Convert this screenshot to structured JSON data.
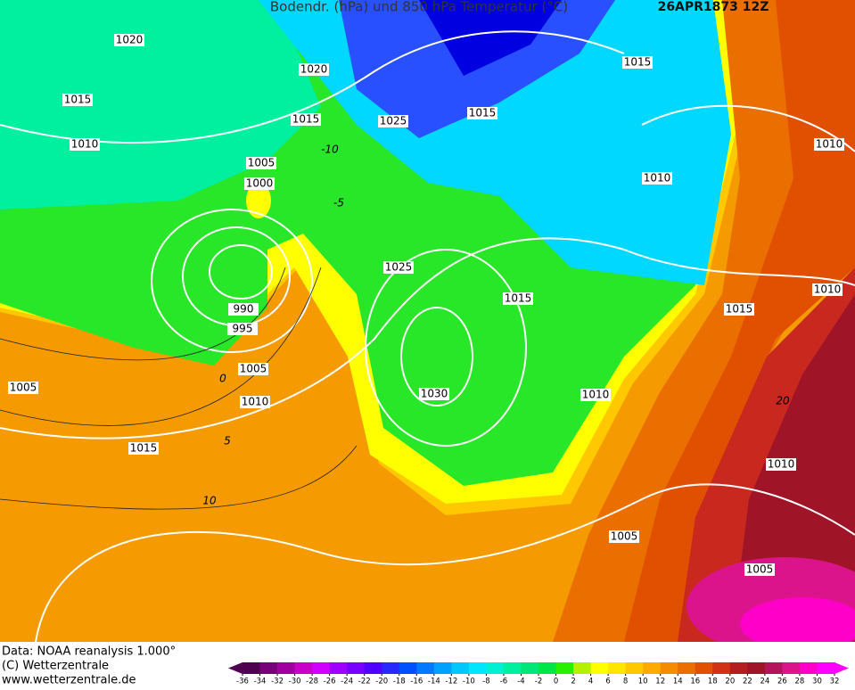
{
  "header": {
    "title": "Bodendr. (hPa) und 850 hPa Temperatur (°C)",
    "date": "26APR1873 12Z"
  },
  "isobar_labels": [
    1020,
    1015,
    1020,
    1015,
    1010,
    1005,
    1000,
    1025,
    1015,
    1015,
    1010,
    1010,
    990,
    995,
    1025,
    1015,
    1010,
    1015,
    1005,
    1010,
    1005,
    1030,
    1010,
    1015,
    1010,
    1005,
    1005
  ],
  "temperature_labels": [
    -10,
    -5,
    0,
    5,
    10,
    20
  ],
  "footer": {
    "data": "Data: NOAA reanalysis 1.000°",
    "copyright": "(C) Wetterzentrale",
    "url": "www.wetterzentrale.de"
  },
  "legend": {
    "ticks": [
      -36,
      -34,
      -32,
      -30,
      -28,
      -26,
      -24,
      -22,
      -20,
      -18,
      -16,
      -14,
      -12,
      -10,
      -8,
      -6,
      -4,
      -2,
      0,
      2,
      4,
      6,
      8,
      10,
      12,
      14,
      16,
      18,
      20,
      22,
      24,
      26,
      28,
      30,
      32
    ],
    "colors": [
      "#500050",
      "#780078",
      "#a000a0",
      "#c800c8",
      "#d200ff",
      "#a000ff",
      "#7800ff",
      "#5000ff",
      "#2828ff",
      "#0050ff",
      "#0078ff",
      "#00a0ff",
      "#00c8ff",
      "#00e6ff",
      "#00f0d2",
      "#00f0a0",
      "#00e678",
      "#00e646",
      "#28f000",
      "#b4f000",
      "#ffff00",
      "#ffe600",
      "#ffc800",
      "#ffaa00",
      "#f58c00",
      "#eb6e00",
      "#e15000",
      "#d23214",
      "#b41e1e",
      "#a01428",
      "#b4145a",
      "#dc148c",
      "#ff00c8",
      "#ff00ff"
    ]
  }
}
